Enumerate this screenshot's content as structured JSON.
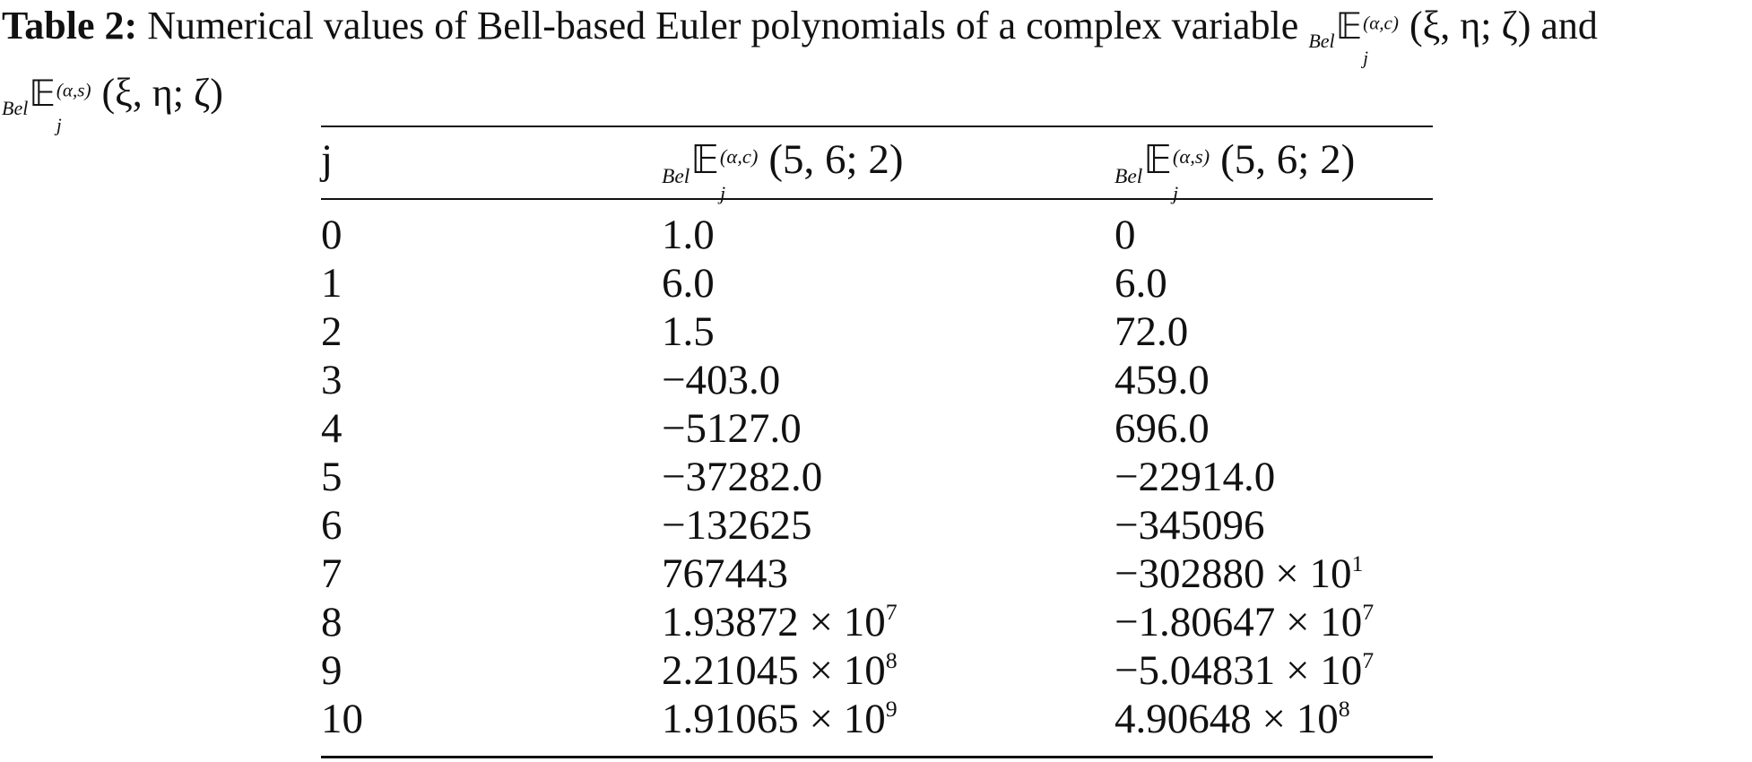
{
  "caption": {
    "label": "Table 2:",
    "text": "Numerical values of Bell-based Euler polynomials of a complex variable",
    "joiner": "and",
    "math1": {
      "prefix": "Bel",
      "symbol": "𝔼",
      "sub": "j",
      "sup": "(α,c)",
      "args": "(ξ, η; ζ)"
    },
    "math2": {
      "prefix": "Bel",
      "symbol": "𝔼",
      "sub": "j",
      "sup": "(α,s)",
      "args": "(ξ, η; ζ)"
    }
  },
  "table": {
    "headers": [
      {
        "text": "j"
      },
      {
        "prefix": "Bel",
        "symbol": "𝔼",
        "sub": "j",
        "sup": "(α,c)",
        "args": "(5, 6; 2)"
      },
      {
        "prefix": "Bel",
        "symbol": "𝔼",
        "sub": "j",
        "sup": "(α,s)",
        "args": "(5, 6; 2)"
      }
    ],
    "rows": [
      {
        "j": "0",
        "c": {
          "m": "1.0"
        },
        "s": {
          "m": "0"
        }
      },
      {
        "j": "1",
        "c": {
          "m": "6.0"
        },
        "s": {
          "m": "6.0"
        }
      },
      {
        "j": "2",
        "c": {
          "m": "1.5"
        },
        "s": {
          "m": "72.0"
        }
      },
      {
        "j": "3",
        "c": {
          "m": "−403.0"
        },
        "s": {
          "m": "459.0"
        }
      },
      {
        "j": "4",
        "c": {
          "m": "−5127.0"
        },
        "s": {
          "m": "696.0"
        }
      },
      {
        "j": "5",
        "c": {
          "m": "−37282.0"
        },
        "s": {
          "m": "−22914.0"
        }
      },
      {
        "j": "6",
        "c": {
          "m": "−132625"
        },
        "s": {
          "m": "−345096"
        }
      },
      {
        "j": "7",
        "c": {
          "m": "767443"
        },
        "s": {
          "m": "−302880 × 10",
          "e": "1"
        }
      },
      {
        "j": "8",
        "c": {
          "m": "1.93872 × 10",
          "e": "7"
        },
        "s": {
          "m": "−1.80647 × 10",
          "e": "7"
        }
      },
      {
        "j": "9",
        "c": {
          "m": "2.21045 × 10",
          "e": "8"
        },
        "s": {
          "m": "−5.04831 × 10",
          "e": "7"
        }
      },
      {
        "j": "10",
        "c": {
          "m": "1.91065 × 10",
          "e": "9"
        },
        "s": {
          "m": "4.90648 × 10",
          "e": "8"
        }
      }
    ]
  }
}
